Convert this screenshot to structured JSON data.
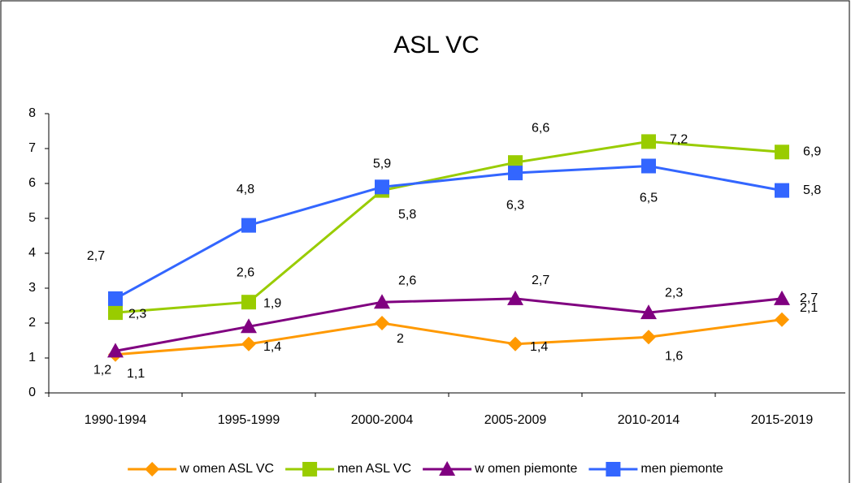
{
  "chart_data": {
    "type": "line",
    "title": "ASL VC",
    "categories": [
      "1990-1994",
      "1995-1999",
      "2000-2004",
      "2005-2009",
      "2010-2014",
      "2015-2019"
    ],
    "series": [
      {
        "name": "w omen ASL VC",
        "color": "#ff9900",
        "marker": "diamond",
        "values": [
          1.1,
          1.4,
          2,
          1.4,
          1.6,
          2.1
        ],
        "value_labels": [
          "1,1",
          "1,4",
          "2",
          "1,4",
          "1,6",
          "2,1"
        ]
      },
      {
        "name": "men ASL VC",
        "color": "#99cc00",
        "marker": "square",
        "values": [
          2.3,
          2.6,
          5.8,
          6.6,
          7.2,
          6.9
        ],
        "value_labels": [
          "2,3",
          "2,6",
          "5,8",
          "6,6",
          "7,2",
          "6,9"
        ]
      },
      {
        "name": "w omen piemonte",
        "color": "#800080",
        "marker": "triangle",
        "values": [
          1.2,
          1.9,
          2.6,
          2.7,
          2.3,
          2.7
        ],
        "value_labels": [
          "1,2",
          "1,9",
          "2,6",
          "2,7",
          "2,3",
          "2,7"
        ]
      },
      {
        "name": "men piemonte",
        "color": "#3366ff",
        "marker": "square",
        "values": [
          2.7,
          4.8,
          5.9,
          6.3,
          6.5,
          5.8
        ],
        "value_labels": [
          "2,7",
          "4,8",
          "5,9",
          "6,3",
          "6,5",
          "5,8"
        ]
      }
    ],
    "ylim": [
      0,
      8
    ],
    "yticks": [
      0,
      1,
      2,
      3,
      4,
      5,
      6,
      7,
      8
    ],
    "grid": false,
    "legend": "bottom"
  }
}
